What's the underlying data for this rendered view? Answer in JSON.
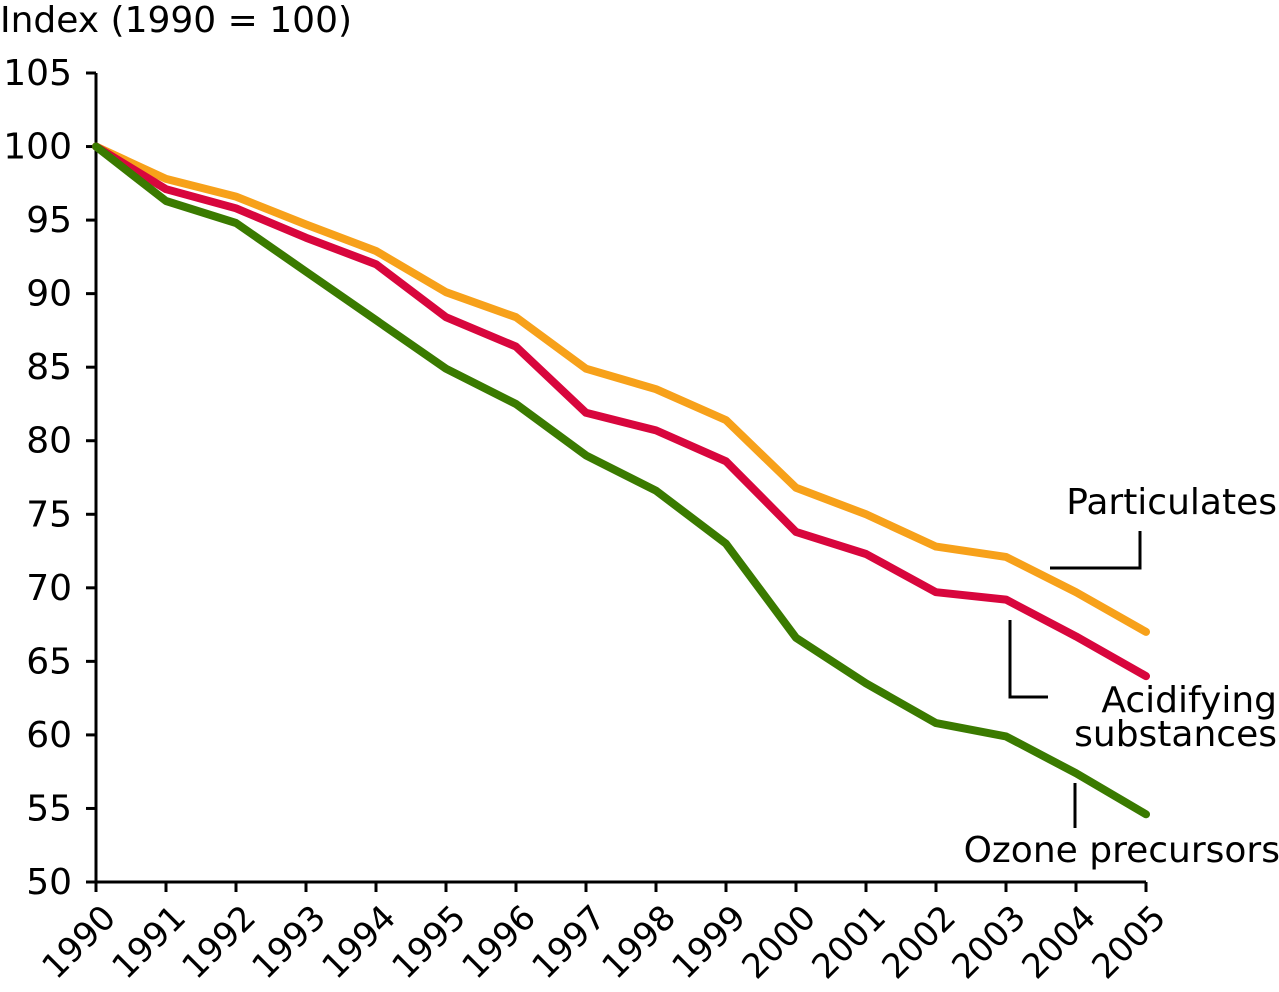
{
  "chart_data": {
    "type": "line",
    "ylabel": "Index (1990 = 100)",
    "xlabel": "",
    "ylim": [
      50,
      105
    ],
    "ytick_step": 5,
    "x": [
      "1990",
      "1991",
      "1992",
      "1993",
      "1994",
      "1995",
      "1996",
      "1997",
      "1998",
      "1999",
      "2000",
      "2001",
      "2002",
      "2003",
      "2004",
      "2005"
    ],
    "grid": false,
    "series": [
      {
        "name": "Particulates",
        "label_lines": [
          "Particulates"
        ],
        "color": "#f7a11a",
        "values": [
          100,
          97.8,
          96.6,
          94.7,
          92.9,
          90.1,
          88.4,
          84.9,
          83.5,
          81.4,
          76.8,
          75.0,
          72.8,
          72.1,
          69.7,
          67.0
        ]
      },
      {
        "name": "Acidifying substances",
        "label_lines": [
          "Acidifying",
          "substances"
        ],
        "color": "#d8063d",
        "values": [
          100,
          97.1,
          95.8,
          93.8,
          92.0,
          88.4,
          86.4,
          81.9,
          80.7,
          78.6,
          73.8,
          72.3,
          69.7,
          69.2,
          66.7,
          64.0
        ]
      },
      {
        "name": "Ozone precursors",
        "label_lines": [
          "Ozone precursors"
        ],
        "color": "#3a7a00",
        "values": [
          100,
          96.3,
          94.8,
          91.5,
          88.2,
          84.9,
          82.5,
          79.0,
          76.6,
          73.0,
          66.6,
          63.5,
          60.8,
          59.9,
          57.4,
          54.6
        ]
      }
    ]
  }
}
